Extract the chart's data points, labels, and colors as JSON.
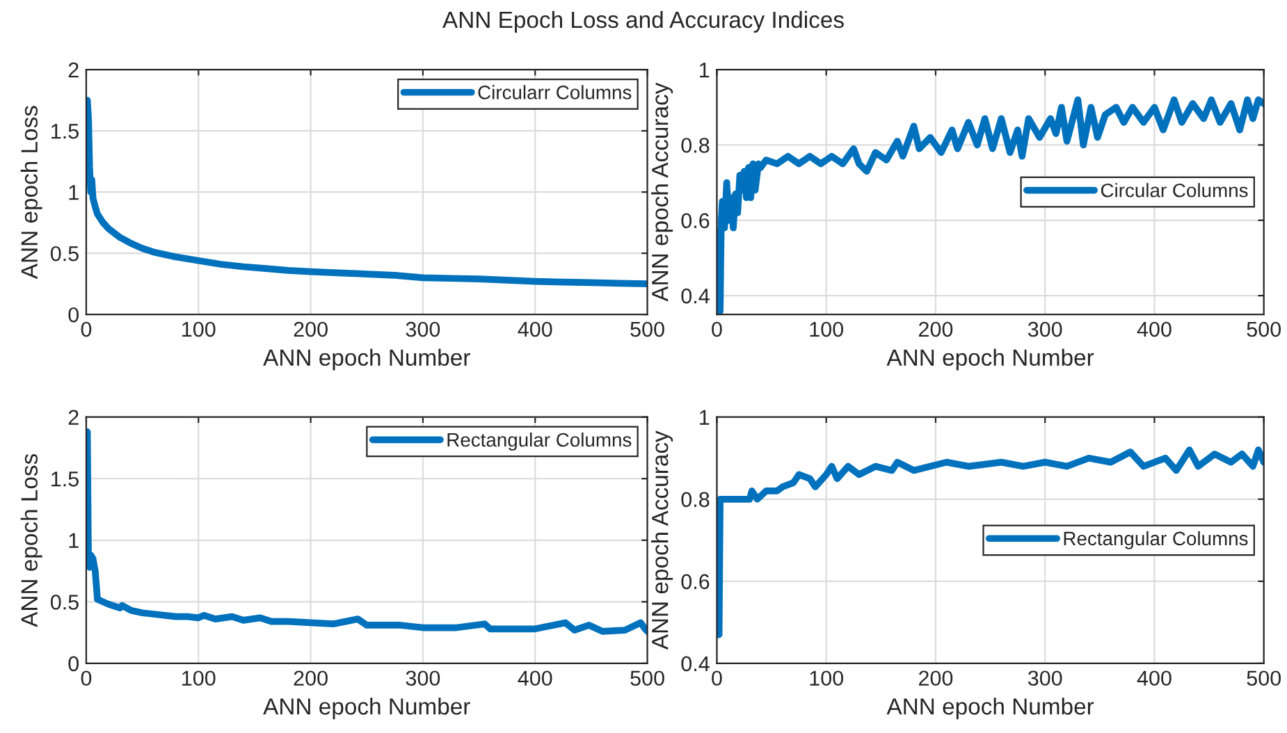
{
  "chart_data": [
    {
      "type": "line",
      "title": "ANN Epoch Loss and Accuracy Indices",
      "xlabel": "ANN epoch Number",
      "ylabel": "ANN epoch Loss",
      "xlim": [
        0,
        500
      ],
      "xticks": [
        0,
        100,
        200,
        300,
        400,
        500
      ],
      "ylim": [
        0,
        2
      ],
      "yticks": [
        0,
        0.5,
        1,
        1.5,
        2
      ],
      "grid": true,
      "legend": "top right",
      "series": [
        {
          "name": "Circularr Columns",
          "color": "#0072bd",
          "x": [
            1,
            2,
            3,
            4,
            5,
            6,
            8,
            10,
            15,
            20,
            30,
            40,
            50,
            60,
            70,
            80,
            100,
            120,
            140,
            160,
            180,
            200,
            225,
            250,
            275,
            300,
            325,
            350,
            375,
            400,
            425,
            450,
            475,
            500
          ],
          "values": [
            1.75,
            1.6,
            1.2,
            1.0,
            1.1,
            0.95,
            0.88,
            0.82,
            0.75,
            0.7,
            0.63,
            0.58,
            0.54,
            0.51,
            0.49,
            0.47,
            0.44,
            0.41,
            0.39,
            0.375,
            0.36,
            0.35,
            0.34,
            0.33,
            0.32,
            0.3,
            0.295,
            0.29,
            0.28,
            0.27,
            0.265,
            0.26,
            0.255,
            0.25
          ]
        }
      ]
    },
    {
      "type": "line",
      "xlabel": "ANN epoch Number",
      "ylabel": "ANN epoch Accuracy",
      "xlim": [
        0,
        500
      ],
      "xticks": [
        0,
        100,
        200,
        300,
        400,
        500
      ],
      "ylim": [
        0.35,
        1
      ],
      "yticks": [
        0.4,
        0.6,
        0.8,
        1
      ],
      "grid": true,
      "legend": "right",
      "series": [
        {
          "name": "Circular Columns",
          "color": "#0072bd",
          "x": [
            1,
            2,
            3,
            4,
            5,
            7,
            9,
            11,
            13,
            15,
            17,
            19,
            21,
            23,
            25,
            27,
            29,
            31,
            33,
            35,
            38,
            40,
            45,
            55,
            65,
            75,
            85,
            95,
            105,
            115,
            125,
            130,
            137,
            145,
            155,
            165,
            170,
            180,
            185,
            195,
            205,
            215,
            220,
            230,
            238,
            245,
            252,
            260,
            268,
            275,
            279,
            285,
            295,
            305,
            310,
            315,
            320,
            330,
            335,
            342,
            348,
            355,
            365,
            372,
            380,
            390,
            400,
            408,
            418,
            425,
            435,
            445,
            452,
            460,
            470,
            478,
            485,
            490,
            495,
            500
          ],
          "values": [
            0.57,
            0.35,
            0.36,
            0.6,
            0.65,
            0.58,
            0.7,
            0.6,
            0.66,
            0.58,
            0.67,
            0.62,
            0.72,
            0.68,
            0.73,
            0.66,
            0.74,
            0.66,
            0.75,
            0.68,
            0.75,
            0.74,
            0.76,
            0.75,
            0.77,
            0.75,
            0.77,
            0.75,
            0.77,
            0.75,
            0.79,
            0.75,
            0.73,
            0.78,
            0.76,
            0.81,
            0.77,
            0.85,
            0.79,
            0.82,
            0.78,
            0.84,
            0.79,
            0.86,
            0.8,
            0.87,
            0.79,
            0.87,
            0.78,
            0.84,
            0.77,
            0.87,
            0.82,
            0.87,
            0.83,
            0.9,
            0.81,
            0.92,
            0.8,
            0.9,
            0.82,
            0.88,
            0.9,
            0.86,
            0.9,
            0.86,
            0.9,
            0.84,
            0.92,
            0.86,
            0.91,
            0.87,
            0.92,
            0.86,
            0.91,
            0.84,
            0.92,
            0.87,
            0.92,
            0.91
          ]
        }
      ]
    },
    {
      "type": "line",
      "xlabel": "ANN epoch Number",
      "ylabel": "ANN epoch Loss",
      "xlim": [
        0,
        500
      ],
      "xticks": [
        0,
        100,
        200,
        300,
        400,
        500
      ],
      "ylim": [
        0,
        2
      ],
      "yticks": [
        0,
        0.5,
        1,
        1.5,
        2
      ],
      "grid": true,
      "legend": "top right",
      "series": [
        {
          "name": "Rectangular Columns",
          "color": "#0072bd",
          "x": [
            1,
            2,
            3,
            4,
            6,
            8,
            10,
            15,
            20,
            30,
            32,
            40,
            50,
            60,
            70,
            80,
            90,
            100,
            105,
            115,
            130,
            140,
            155,
            165,
            180,
            200,
            220,
            242,
            250,
            280,
            300,
            330,
            355,
            360,
            400,
            427,
            435,
            448,
            460,
            480,
            494,
            498,
            500
          ],
          "values": [
            1.88,
            0.8,
            0.78,
            0.88,
            0.85,
            0.75,
            0.52,
            0.5,
            0.48,
            0.45,
            0.47,
            0.43,
            0.41,
            0.4,
            0.39,
            0.38,
            0.38,
            0.37,
            0.39,
            0.36,
            0.38,
            0.35,
            0.37,
            0.34,
            0.34,
            0.33,
            0.32,
            0.36,
            0.31,
            0.31,
            0.29,
            0.29,
            0.32,
            0.28,
            0.28,
            0.33,
            0.27,
            0.31,
            0.26,
            0.27,
            0.33,
            0.28,
            0.26
          ]
        }
      ]
    },
    {
      "type": "line",
      "xlabel": "ANN epoch Number",
      "ylabel": "ANN epoch Accuracy",
      "xlim": [
        0,
        500
      ],
      "xticks": [
        0,
        100,
        200,
        300,
        400,
        500
      ],
      "ylim": [
        0.4,
        1
      ],
      "yticks": [
        0.4,
        0.6,
        0.8,
        1
      ],
      "grid": true,
      "legend": "right",
      "series": [
        {
          "name": "Rectangular Columns",
          "color": "#0072bd",
          "x": [
            1,
            2,
            3,
            30,
            32,
            37,
            45,
            55,
            60,
            70,
            75,
            85,
            90,
            100,
            105,
            110,
            120,
            130,
            145,
            160,
            165,
            180,
            210,
            230,
            260,
            280,
            300,
            320,
            340,
            360,
            378,
            390,
            410,
            420,
            432,
            440,
            455,
            470,
            480,
            490,
            495,
            500
          ],
          "values": [
            0.47,
            0.47,
            0.8,
            0.8,
            0.82,
            0.8,
            0.82,
            0.82,
            0.83,
            0.84,
            0.86,
            0.85,
            0.83,
            0.86,
            0.88,
            0.85,
            0.88,
            0.86,
            0.88,
            0.87,
            0.89,
            0.87,
            0.89,
            0.88,
            0.89,
            0.88,
            0.89,
            0.88,
            0.9,
            0.89,
            0.915,
            0.88,
            0.9,
            0.87,
            0.92,
            0.88,
            0.91,
            0.89,
            0.91,
            0.88,
            0.92,
            0.89
          ]
        }
      ]
    }
  ]
}
